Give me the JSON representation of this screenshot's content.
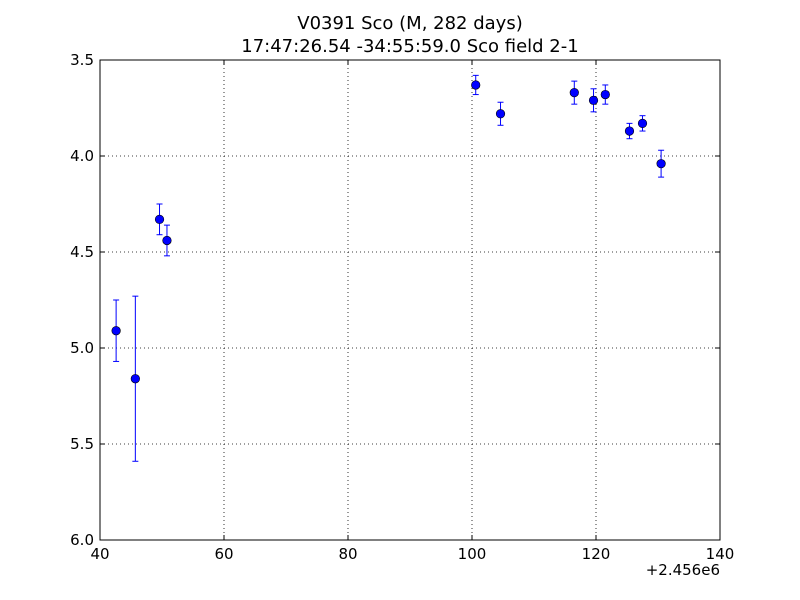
{
  "chart_data": {
    "type": "scatter",
    "title_line1": "V0391 Sco  (M, 282 days)",
    "title_line2": "17:47:26.54 -34:55:59.0 Sco field 2-1",
    "xlabel": "",
    "ylabel": "",
    "x_offset_label": "+2.456e6",
    "xlim": [
      40,
      140
    ],
    "ylim": [
      3.5,
      6.0
    ],
    "y_inverted": true,
    "grid": true,
    "x_ticks": [
      40,
      60,
      80,
      100,
      120,
      140
    ],
    "x_tick_labels": [
      "40",
      "60",
      "80",
      "100",
      "120",
      "140"
    ],
    "y_ticks": [
      3.5,
      4.0,
      4.5,
      5.0,
      5.5,
      6.0
    ],
    "y_tick_labels": [
      "3.5",
      "4.0",
      "4.5",
      "5.0",
      "5.5",
      "6.0"
    ],
    "marker_color": "#0000ff",
    "errorbar_color": "#0000ff",
    "points": [
      {
        "x": 42.6,
        "y": 4.91,
        "err": 0.16
      },
      {
        "x": 45.7,
        "y": 5.16,
        "err": 0.43
      },
      {
        "x": 49.6,
        "y": 4.33,
        "err": 0.08
      },
      {
        "x": 50.8,
        "y": 4.44,
        "err": 0.08
      },
      {
        "x": 100.6,
        "y": 3.63,
        "err": 0.05
      },
      {
        "x": 104.6,
        "y": 3.78,
        "err": 0.06
      },
      {
        "x": 116.5,
        "y": 3.67,
        "err": 0.06
      },
      {
        "x": 119.6,
        "y": 3.71,
        "err": 0.06
      },
      {
        "x": 121.5,
        "y": 3.68,
        "err": 0.05
      },
      {
        "x": 125.4,
        "y": 3.87,
        "err": 0.04
      },
      {
        "x": 127.5,
        "y": 3.83,
        "err": 0.04
      },
      {
        "x": 130.5,
        "y": 4.04,
        "err": 0.07
      }
    ]
  }
}
